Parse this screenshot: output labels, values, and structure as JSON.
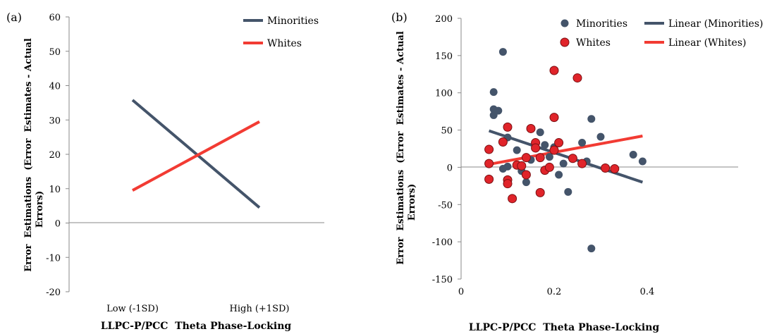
{
  "chart_data": [
    {
      "panel_label": "(a)",
      "type": "line",
      "categories": [
        "Low (-1SD)",
        "High (+1SD)"
      ],
      "series": [
        {
          "name": "Minorities",
          "color": "#44546A",
          "values": [
            35.8,
            4.5
          ]
        },
        {
          "name": "Whites",
          "color": "#F23B33",
          "values": [
            9.5,
            29.5
          ]
        }
      ],
      "xlabel": "LLPC-P/PCC  Theta Phase-Locking",
      "ylabel": "Error  Estimations  (Error  Estimates - Actual Errors)",
      "ylim": [
        -20,
        60
      ],
      "yticks": [
        -20,
        -10,
        0,
        10,
        20,
        30,
        40,
        50,
        60
      ],
      "legend_position": "top-right",
      "grid": false
    },
    {
      "panel_label": "(b)",
      "type": "scatter",
      "series": [
        {
          "name": "Minorities",
          "color": "#44546A",
          "points": [
            [
              0.07,
              101
            ],
            [
              0.07,
              70
            ],
            [
              0.07,
              78
            ],
            [
              0.08,
              76
            ],
            [
              0.09,
              155
            ],
            [
              0.09,
              -2
            ],
            [
              0.1,
              40
            ],
            [
              0.1,
              1
            ],
            [
              0.12,
              23
            ],
            [
              0.13,
              -5
            ],
            [
              0.14,
              -20
            ],
            [
              0.15,
              10
            ],
            [
              0.17,
              47
            ],
            [
              0.18,
              30
            ],
            [
              0.19,
              14
            ],
            [
              0.2,
              27
            ],
            [
              0.21,
              -10
            ],
            [
              0.22,
              5
            ],
            [
              0.23,
              -33
            ],
            [
              0.26,
              33
            ],
            [
              0.27,
              8
            ],
            [
              0.28,
              65
            ],
            [
              0.28,
              -109
            ],
            [
              0.3,
              41
            ],
            [
              0.37,
              17
            ],
            [
              0.39,
              8
            ]
          ]
        },
        {
          "name": "Whites",
          "color": "#E0242A",
          "points": [
            [
              0.06,
              24
            ],
            [
              0.06,
              5
            ],
            [
              0.06,
              -16
            ],
            [
              0.09,
              34
            ],
            [
              0.1,
              54
            ],
            [
              0.1,
              -17
            ],
            [
              0.1,
              -22
            ],
            [
              0.11,
              -42
            ],
            [
              0.12,
              3
            ],
            [
              0.13,
              2
            ],
            [
              0.14,
              13
            ],
            [
              0.14,
              -10
            ],
            [
              0.15,
              52
            ],
            [
              0.16,
              33
            ],
            [
              0.16,
              26
            ],
            [
              0.17,
              13
            ],
            [
              0.17,
              -34
            ],
            [
              0.18,
              -4
            ],
            [
              0.19,
              0
            ],
            [
              0.2,
              130
            ],
            [
              0.2,
              67
            ],
            [
              0.2,
              23
            ],
            [
              0.21,
              33
            ],
            [
              0.24,
              12
            ],
            [
              0.25,
              120
            ],
            [
              0.26,
              5
            ],
            [
              0.31,
              -1
            ],
            [
              0.33,
              -2
            ]
          ]
        }
      ],
      "trendlines": [
        {
          "name": "Linear (Minorities)",
          "color": "#44546A",
          "x": [
            0.06,
            0.39
          ],
          "y": [
            49,
            -20
          ]
        },
        {
          "name": "Linear (Whites)",
          "color": "#F23B33",
          "x": [
            0.06,
            0.39
          ],
          "y": [
            4,
            42
          ]
        }
      ],
      "xlabel": "LLPC-P/PCC  Theta Phase-Locking",
      "ylabel": "Error  Estimations  (Error  Estimates - Actual Errors)",
      "xlim": [
        0,
        0.4
      ],
      "ylim": [
        -150,
        200
      ],
      "xticks": [
        0,
        0.2,
        0.4
      ],
      "xtick_labels": [
        "0",
        "0.2",
        "0.4"
      ],
      "yticks": [
        -150,
        -100,
        -50,
        0,
        50,
        100,
        150,
        200
      ],
      "legend_position": "top",
      "grid": false
    }
  ]
}
